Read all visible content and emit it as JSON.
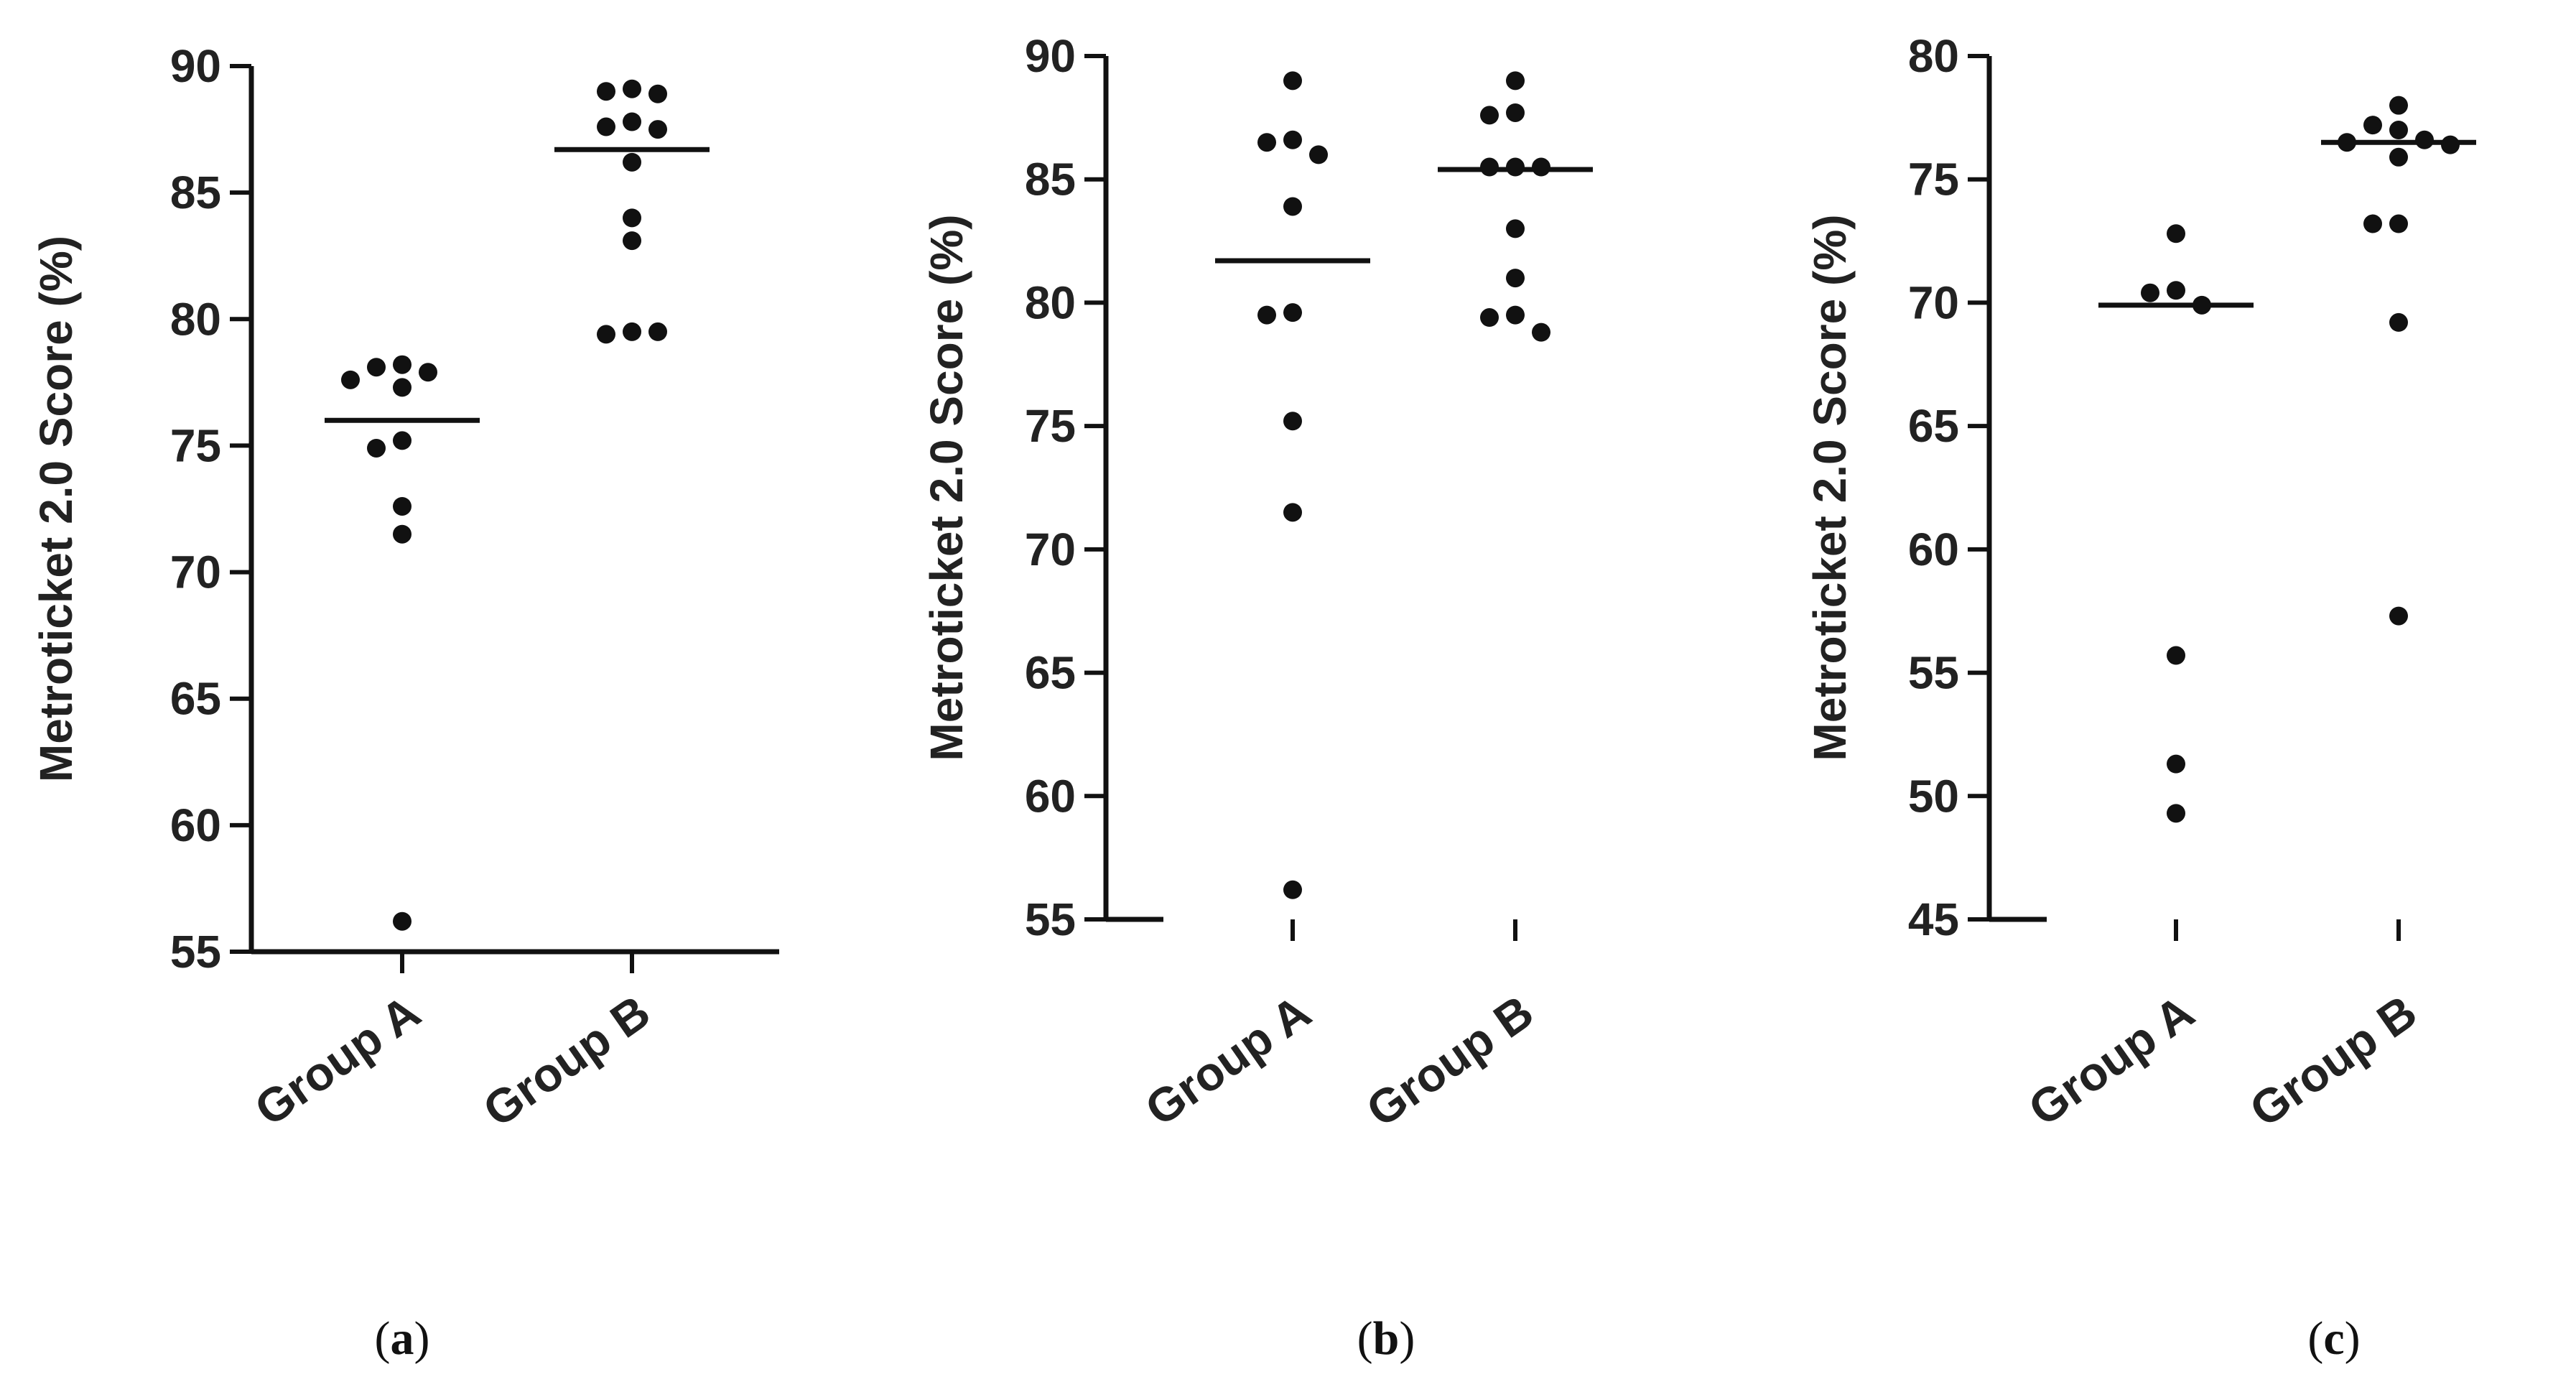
{
  "chart_data": [
    {
      "type": "scatter",
      "panel_label": "a",
      "ylabel": "Metroticket 2.0 Score (%)",
      "ylim": [
        55,
        90
      ],
      "yticks": [
        55,
        60,
        65,
        70,
        75,
        80,
        85,
        90
      ],
      "categories": [
        "Group A",
        "Group B"
      ],
      "series": [
        {
          "category": "Group A",
          "mean": 76.0,
          "values": [
            78.2,
            78.1,
            77.9,
            77.6,
            77.3,
            75.2,
            74.9,
            72.6,
            71.5,
            56.2
          ]
        },
        {
          "category": "Group B",
          "mean": 86.7,
          "values": [
            89.1,
            89.0,
            88.9,
            87.8,
            87.6,
            87.5,
            86.2,
            84.0,
            83.1,
            79.5,
            79.4,
            79.5
          ]
        }
      ]
    },
    {
      "type": "scatter",
      "panel_label": "b",
      "ylabel": "Metroticket 2.0 Score (%)",
      "ylim": [
        55,
        90
      ],
      "yticks": [
        55,
        60,
        65,
        70,
        75,
        80,
        85,
        90
      ],
      "categories": [
        "Group A",
        "Group B"
      ],
      "series": [
        {
          "category": "Group A",
          "mean": 81.7,
          "values": [
            89.0,
            86.6,
            86.5,
            86.0,
            83.9,
            79.6,
            79.5,
            75.2,
            71.5,
            56.2
          ]
        },
        {
          "category": "Group B",
          "mean": 85.4,
          "values": [
            89.0,
            87.7,
            87.6,
            85.5,
            85.5,
            85.5,
            83.0,
            81.0,
            79.5,
            79.4,
            78.8
          ]
        }
      ]
    },
    {
      "type": "scatter",
      "panel_label": "c",
      "ylabel": "Metroticket 2.0 Score (%)",
      "ylim": [
        45,
        80
      ],
      "yticks": [
        45,
        50,
        55,
        60,
        65,
        70,
        75,
        80
      ],
      "categories": [
        "Group A",
        "Group B"
      ],
      "series": [
        {
          "category": "Group A",
          "mean": 69.9,
          "values": [
            72.8,
            70.5,
            70.4,
            69.9,
            55.7,
            51.3,
            49.3
          ]
        },
        {
          "category": "Group B",
          "mean": 76.5,
          "values": [
            78.0,
            77.2,
            77.0,
            76.6,
            76.5,
            76.4,
            75.9,
            73.2,
            73.2,
            69.2,
            57.3
          ]
        }
      ]
    }
  ]
}
